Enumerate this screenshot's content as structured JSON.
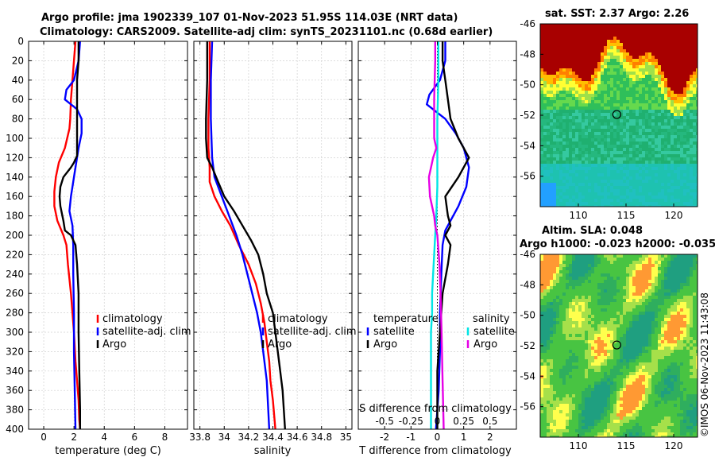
{
  "header": {
    "title_line1": "Argo profile: jma 1902339_107 01-Nov-2023 51.95S 114.03E (NRT data)",
    "title_line2": "Climatology: CARS2009. Satellite-adj clim: synTS_20231101.nc (0.68d earlier)"
  },
  "watermark": "©IMOS 06-Nov-2023 11:43:08",
  "colors": {
    "climatology": "#ff0000",
    "satellite": "#0000ff",
    "argo": "#000000",
    "sat_salinity": "#00e5e5",
    "argo_salinity": "#e600e6"
  },
  "chart_data": [
    {
      "type": "line",
      "id": "temperature",
      "xlabel": "temperature (deg C)",
      "xlim": [
        -1,
        9.5
      ],
      "xticks": [
        0,
        2,
        4,
        6,
        8
      ],
      "xtick_labels": [
        "0",
        "2",
        "4",
        "6",
        "8"
      ],
      "ylim": [
        0,
        400
      ],
      "yticks": [
        0,
        20,
        40,
        60,
        80,
        100,
        120,
        140,
        160,
        180,
        200,
        220,
        240,
        260,
        280,
        300,
        320,
        340,
        360,
        380,
        400
      ],
      "ytick_labels": [
        "0",
        "20",
        "40",
        "60",
        "80",
        "100",
        "120",
        "140",
        "160",
        "180",
        "200",
        "220",
        "240",
        "260",
        "280",
        "300",
        "320",
        "340",
        "360",
        "380",
        "400"
      ],
      "grid": true,
      "legend": [
        {
          "label": "climatology",
          "color": "#ff0000"
        },
        {
          "label": "satellite-adj. clim",
          "color": "#0000ff"
        },
        {
          "label": "Argo",
          "color": "#000000"
        }
      ],
      "series": [
        {
          "name": "climatology",
          "color": "#ff0000",
          "x": [
            2.1,
            2.0,
            1.9,
            1.8,
            1.75,
            1.7,
            1.4,
            1.0,
            0.8,
            0.7,
            0.7,
            0.9,
            1.3,
            1.5,
            1.6,
            1.8,
            2.0,
            2.1,
            2.2,
            2.3,
            2.35,
            2.4
          ],
          "y": [
            0,
            20,
            40,
            60,
            80,
            90,
            110,
            125,
            140,
            155,
            170,
            185,
            200,
            210,
            230,
            260,
            300,
            330,
            350,
            370,
            390,
            400
          ]
        },
        {
          "name": "satellite-adj. clim",
          "color": "#0000ff",
          "x": [
            2.4,
            2.3,
            2.0,
            1.5,
            1.4,
            2.2,
            2.5,
            2.5,
            2.3,
            2.0,
            1.8,
            1.7,
            1.9,
            1.95,
            1.95,
            2.0,
            2.0,
            2.05,
            2.1
          ],
          "y": [
            0,
            20,
            40,
            50,
            60,
            70,
            80,
            95,
            110,
            140,
            160,
            175,
            190,
            210,
            240,
            280,
            320,
            360,
            400
          ]
        },
        {
          "name": "Argo",
          "color": "#000000",
          "x": [
            2.3,
            2.3,
            2.2,
            2.2,
            2.2,
            2.2,
            2.2,
            2.0,
            1.8,
            1.3,
            1.1,
            1.05,
            1.1,
            1.3,
            1.4,
            1.8,
            2.1,
            2.2,
            2.3,
            2.3,
            2.35,
            2.4,
            2.4
          ],
          "y": [
            0,
            20,
            40,
            60,
            80,
            100,
            118,
            125,
            130,
            140,
            150,
            160,
            170,
            185,
            195,
            200,
            210,
            230,
            260,
            300,
            340,
            380,
            400
          ]
        }
      ]
    },
    {
      "type": "line",
      "id": "salinity",
      "xlabel": "salinity",
      "xlim": [
        33.75,
        35.05
      ],
      "xticks": [
        33.8,
        34.0,
        34.2,
        34.4,
        34.6,
        34.8,
        35.0
      ],
      "xtick_labels": [
        "33.8",
        "34",
        "34.2",
        "34.4",
        "34.6",
        "34.8",
        "35"
      ],
      "ylim": [
        0,
        400
      ],
      "grid": true,
      "legend": [
        {
          "label": "climatology",
          "color": "#ff0000"
        },
        {
          "label": "satellite-adj. clim",
          "color": "#0000ff"
        },
        {
          "label": "Argo",
          "color": "#000000"
        }
      ],
      "series": [
        {
          "name": "climatology",
          "color": "#ff0000",
          "x": [
            33.88,
            33.88,
            33.87,
            33.87,
            33.88,
            33.88,
            33.92,
            33.98,
            34.05,
            34.12,
            34.2,
            34.26,
            34.3,
            34.33,
            34.35,
            34.37,
            34.38,
            34.4,
            34.42
          ],
          "y": [
            0,
            40,
            80,
            110,
            130,
            145,
            160,
            175,
            190,
            210,
            230,
            250,
            270,
            290,
            310,
            330,
            350,
            370,
            400
          ]
        },
        {
          "name": "satellite-adj. clim",
          "color": "#0000ff",
          "x": [
            33.9,
            33.89,
            33.89,
            33.9,
            33.92,
            33.98,
            34.04,
            34.1,
            34.15,
            34.19,
            34.23,
            34.27,
            34.3,
            34.32,
            34.35,
            34.37
          ],
          "y": [
            0,
            40,
            80,
            120,
            140,
            160,
            180,
            200,
            220,
            240,
            260,
            280,
            300,
            320,
            350,
            400
          ]
        },
        {
          "name": "Argo",
          "color": "#000000",
          "x": [
            33.86,
            33.86,
            33.85,
            33.85,
            33.86,
            33.9,
            33.95,
            34.0,
            34.08,
            34.15,
            34.22,
            34.28,
            34.32,
            34.35,
            34.4,
            34.42,
            34.45,
            34.48,
            34.5
          ],
          "y": [
            0,
            40,
            80,
            100,
            120,
            130,
            145,
            160,
            175,
            190,
            205,
            220,
            240,
            260,
            280,
            300,
            330,
            360,
            400
          ]
        }
      ]
    },
    {
      "type": "line",
      "id": "difference",
      "xlabel": "T difference from climatology",
      "x2label": "S difference from climatology",
      "xlim": [
        -3,
        3
      ],
      "xticks": [
        -2,
        -1,
        0,
        1,
        2
      ],
      "xtick_labels": [
        "-2",
        "-1",
        "0",
        "1",
        "2"
      ],
      "x2ticks": [
        -0.5,
        -0.25,
        0,
        0.25,
        0.5
      ],
      "x2tick_labels": [
        "-0.5",
        "-0.25",
        "0",
        "0.25",
        "0.5"
      ],
      "x2lim": [
        -0.75,
        0.75
      ],
      "ylim": [
        0,
        400
      ],
      "grid": true,
      "legend_temperature_title": "temperature",
      "legend_salinity_title": "salinity",
      "legend": [
        {
          "label": "satellite",
          "color": "#0000ff",
          "group": "temperature"
        },
        {
          "label": "Argo",
          "color": "#000000",
          "group": "temperature"
        },
        {
          "label": "satellite",
          "color": "#00e5e5",
          "group": "salinity"
        },
        {
          "label": "Argo",
          "color": "#e600e6",
          "group": "salinity"
        }
      ],
      "series": [
        {
          "name": "T satellite",
          "color": "#0000ff",
          "x": [
            0.3,
            0.3,
            0.1,
            -0.3,
            -0.4,
            0.3,
            0.7,
            1.0,
            1.2,
            1.1,
            0.8,
            0.5,
            0.3,
            0.2,
            0.15,
            0.1,
            0.1,
            0.05,
            -0.05
          ],
          "y": [
            0,
            20,
            40,
            55,
            65,
            80,
            95,
            110,
            130,
            150,
            170,
            185,
            195,
            210,
            240,
            280,
            320,
            360,
            400
          ]
        },
        {
          "name": "T Argo",
          "color": "#000000",
          "x": [
            0.2,
            0.2,
            0.3,
            0.4,
            0.5,
            0.8,
            1.2,
            0.8,
            0.3,
            0.4,
            0.5,
            0.3,
            0.5,
            0.4,
            0.2,
            0.1,
            0.0,
            0.0,
            0.0
          ],
          "y": [
            0,
            20,
            40,
            60,
            80,
            100,
            120,
            140,
            160,
            180,
            190,
            200,
            210,
            230,
            260,
            300,
            340,
            370,
            400
          ]
        },
        {
          "name": "S satellite",
          "color": "#00e5e5",
          "x": [
            0.01,
            0.01,
            0.0,
            0.0,
            0.0,
            -0.01,
            -0.02,
            -0.03,
            -0.04,
            -0.05,
            -0.05,
            -0.06,
            -0.06,
            -0.06,
            -0.06
          ],
          "y": [
            0,
            40,
            80,
            120,
            150,
            180,
            200,
            220,
            240,
            260,
            280,
            300,
            330,
            360,
            400
          ]
        },
        {
          "name": "S Argo",
          "color": "#e600e6",
          "x": [
            -0.02,
            -0.02,
            -0.03,
            -0.03,
            -0.01,
            -0.04,
            -0.08,
            -0.07,
            -0.03,
            -0.02,
            0.0,
            0.02,
            0.03,
            0.04,
            0.05,
            0.06
          ],
          "y": [
            0,
            20,
            60,
            100,
            110,
            120,
            140,
            160,
            180,
            190,
            200,
            230,
            260,
            300,
            350,
            400
          ]
        }
      ]
    },
    {
      "type": "heatmap",
      "id": "sst_map",
      "title": "sat. SST: 2.37 Argo: 2.26",
      "xlim": [
        106,
        122.5
      ],
      "ylim": [
        -58,
        -46
      ],
      "xticks": [
        110,
        115,
        120
      ],
      "xtick_labels": [
        "110",
        "115",
        "120"
      ],
      "yticks": [
        -46,
        -48,
        -50,
        -52,
        -54,
        -56
      ],
      "ytick_labels": [
        "-46",
        "-48",
        "-50",
        "-52",
        "-54",
        "-56"
      ],
      "argo_position": [
        114.03,
        -51.95
      ]
    },
    {
      "type": "heatmap",
      "id": "sla_map",
      "title_line1": "Altim. SLA: 0.048",
      "title_line2": "Argo h1000: -0.023 h2000: -0.035",
      "xlim": [
        106,
        122.5
      ],
      "ylim": [
        -58,
        -46
      ],
      "xticks": [
        110,
        115,
        120
      ],
      "xtick_labels": [
        "110",
        "115",
        "120"
      ],
      "yticks": [
        -46,
        -48,
        -50,
        -52,
        -54,
        -56
      ],
      "ytick_labels": [
        "-46",
        "-48",
        "-50",
        "-52",
        "-54",
        "-56"
      ],
      "argo_position": [
        114.03,
        -51.95
      ]
    }
  ]
}
